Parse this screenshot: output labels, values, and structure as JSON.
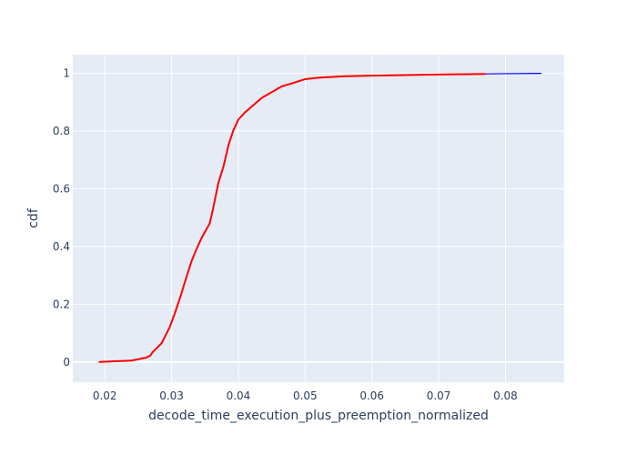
{
  "chart_data": {
    "type": "line",
    "title": "",
    "xlabel": "decode_time_execution_plus_preemption_normalized",
    "ylabel": "cdf",
    "xlim": [
      0.0152,
      0.0888
    ],
    "ylim": [
      -0.07,
      1.065
    ],
    "x_ticks": [
      {
        "value": 0.02,
        "label": "0.02"
      },
      {
        "value": 0.03,
        "label": "0.03"
      },
      {
        "value": 0.04,
        "label": "0.04"
      },
      {
        "value": 0.05,
        "label": "0.05"
      },
      {
        "value": 0.06,
        "label": "0.06"
      },
      {
        "value": 0.07,
        "label": "0.07"
      },
      {
        "value": 0.08,
        "label": "0.08"
      }
    ],
    "y_ticks": [
      {
        "value": 0,
        "label": "0"
      },
      {
        "value": 0.2,
        "label": "0.2"
      },
      {
        "value": 0.4,
        "label": "0.4"
      },
      {
        "value": 0.6,
        "label": "0.6"
      },
      {
        "value": 0.8,
        "label": "0.8"
      },
      {
        "value": 1,
        "label": "1"
      }
    ],
    "grid": true,
    "plot_background": "#e5ecf6",
    "series": [
      {
        "color": "#0000ff",
        "width": 1.2,
        "x": [
          0.0192,
          0.021,
          0.024,
          0.0262,
          0.0268,
          0.0272,
          0.0285,
          0.0297,
          0.0305,
          0.0313,
          0.0323,
          0.033,
          0.0338,
          0.0345,
          0.0357,
          0.0362,
          0.037,
          0.0378,
          0.0385,
          0.0392,
          0.04,
          0.041,
          0.042,
          0.0435,
          0.045,
          0.0465,
          0.048,
          0.05,
          0.052,
          0.056,
          0.06,
          0.065,
          0.07,
          0.08,
          0.0853
        ],
        "y": [
          0.0,
          0.002,
          0.005,
          0.015,
          0.022,
          0.035,
          0.065,
          0.12,
          0.17,
          0.225,
          0.3,
          0.35,
          0.395,
          0.43,
          0.48,
          0.53,
          0.62,
          0.68,
          0.75,
          0.8,
          0.84,
          0.865,
          0.885,
          0.915,
          0.935,
          0.955,
          0.965,
          0.98,
          0.985,
          0.99,
          0.992,
          0.994,
          0.996,
          0.999,
          1.0
        ]
      },
      {
        "color": "#ff0000",
        "width": 2,
        "x": [
          0.0192,
          0.021,
          0.024,
          0.0262,
          0.0268,
          0.0272,
          0.0285,
          0.0297,
          0.0305,
          0.0313,
          0.0323,
          0.033,
          0.0338,
          0.0345,
          0.0357,
          0.0362,
          0.037,
          0.0378,
          0.0385,
          0.0392,
          0.04,
          0.041,
          0.042,
          0.0435,
          0.045,
          0.0465,
          0.048,
          0.05,
          0.052,
          0.056,
          0.06,
          0.065,
          0.07,
          0.077
        ],
        "y": [
          0.0,
          0.002,
          0.005,
          0.015,
          0.022,
          0.035,
          0.065,
          0.12,
          0.17,
          0.225,
          0.3,
          0.35,
          0.395,
          0.43,
          0.48,
          0.53,
          0.62,
          0.68,
          0.75,
          0.8,
          0.84,
          0.865,
          0.885,
          0.915,
          0.935,
          0.955,
          0.965,
          0.98,
          0.985,
          0.99,
          0.992,
          0.994,
          0.996,
          0.998
        ]
      }
    ]
  }
}
